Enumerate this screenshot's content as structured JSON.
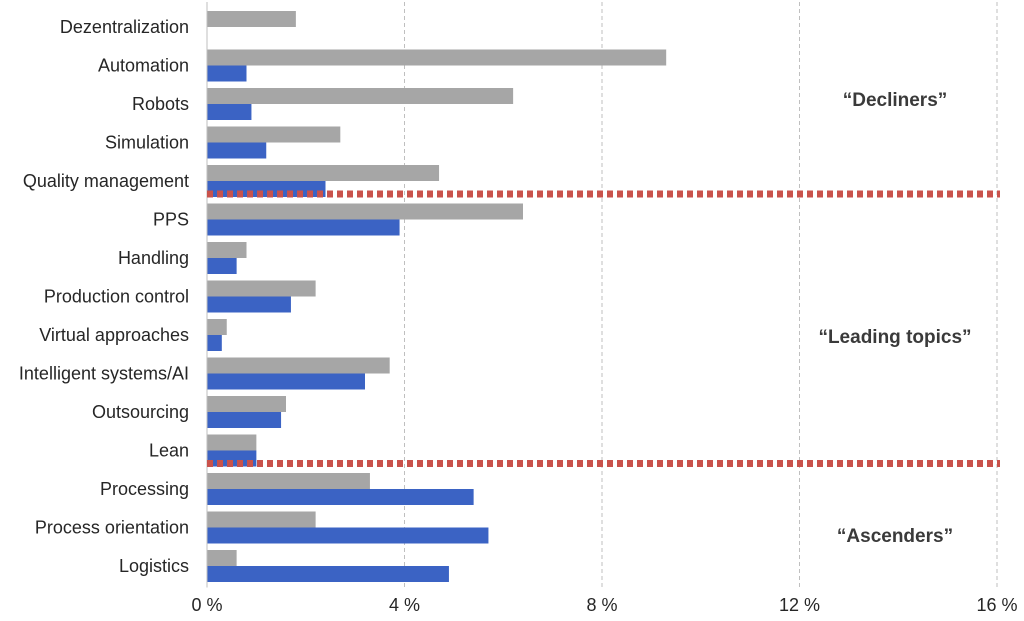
{
  "chart_data": {
    "type": "bar",
    "orientation": "horizontal",
    "title": "",
    "xlabel": "",
    "ylabel": "",
    "xlim": [
      0,
      16
    ],
    "x_ticks": [
      0,
      4,
      8,
      12,
      16
    ],
    "x_tick_labels": [
      "0 %",
      "4 %",
      "8 %",
      "12 %",
      "16 %"
    ],
    "grid": "vertical",
    "categories": [
      "Dezentralization",
      "Automation",
      "Robots",
      "Simulation",
      "Quality management",
      "PPS",
      "Handling",
      "Production control",
      "Virtual approaches",
      "Intelligent systems/AI",
      "Outsourcing",
      "Lean",
      "Processing",
      "Process orientation",
      "Logistics"
    ],
    "series": [
      {
        "color": "#a6a6a6",
        "values": [
          1.8,
          9.3,
          6.2,
          2.7,
          4.7,
          6.4,
          0.8,
          2.2,
          0.4,
          3.7,
          1.6,
          1.0,
          3.3,
          2.2,
          0.6
        ]
      },
      {
        "color": "#3b63c4",
        "values": [
          0.0,
          0.8,
          0.9,
          1.2,
          2.4,
          3.9,
          0.6,
          1.7,
          0.3,
          3.2,
          1.5,
          1.0,
          5.4,
          5.7,
          4.9
        ]
      }
    ],
    "annotations": [
      {
        "text": "“Decliners”"
      },
      {
        "text": "“Leading topics”"
      },
      {
        "text": "“Ascenders”"
      }
    ],
    "separator_color": "#c9524b",
    "separators_after_category": [
      "Quality management",
      "Lean"
    ]
  }
}
